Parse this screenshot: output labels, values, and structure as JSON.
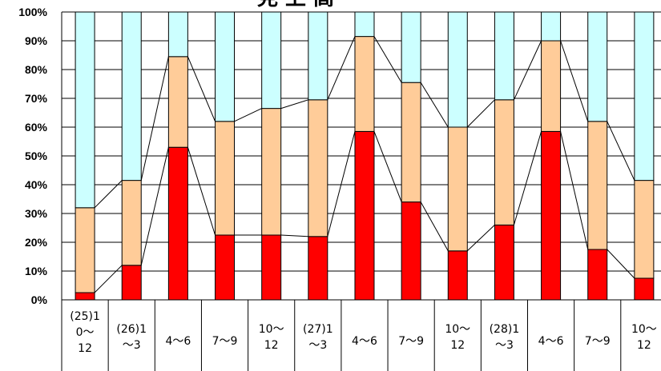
{
  "chart_data": {
    "type": "bar",
    "stacked": true,
    "percent_stacked": true,
    "title": "見 上 高",
    "categories": [
      [
        "(25)1",
        "0～",
        "12"
      ],
      [
        "(26)1",
        "～3"
      ],
      [
        "4～6"
      ],
      [
        "7～9"
      ],
      [
        "10～",
        "12"
      ],
      [
        "(27)1",
        "～3"
      ],
      [
        "4～6"
      ],
      [
        "7～9"
      ],
      [
        "10～",
        "12"
      ],
      [
        "(28)1",
        "～3"
      ],
      [
        "4～6"
      ],
      [
        "7～9"
      ],
      [
        "10～",
        "12"
      ]
    ],
    "series": [
      {
        "color": "#ff0000",
        "values": [
          2.5,
          12,
          53,
          22.5,
          22.5,
          22,
          58.5,
          34,
          17,
          26,
          58.5,
          17.5,
          7.5
        ]
      },
      {
        "color": "#ffcc99",
        "values": [
          29.5,
          29.5,
          31.5,
          39.5,
          44,
          47.5,
          33,
          41.5,
          43,
          43.5,
          31.5,
          44.5,
          34
        ]
      },
      {
        "color": "#ccffff",
        "values": [
          68,
          58.5,
          15.5,
          38,
          33.5,
          30.5,
          8.5,
          24.5,
          40,
          30.5,
          10,
          38,
          58.5
        ]
      }
    ],
    "series_lines": true,
    "ylim": [
      0,
      100
    ],
    "yticks": [
      "0%",
      "10%",
      "20%",
      "30%",
      "40%",
      "50%",
      "60%",
      "70%",
      "80%",
      "90%",
      "100%"
    ],
    "grid": true
  }
}
